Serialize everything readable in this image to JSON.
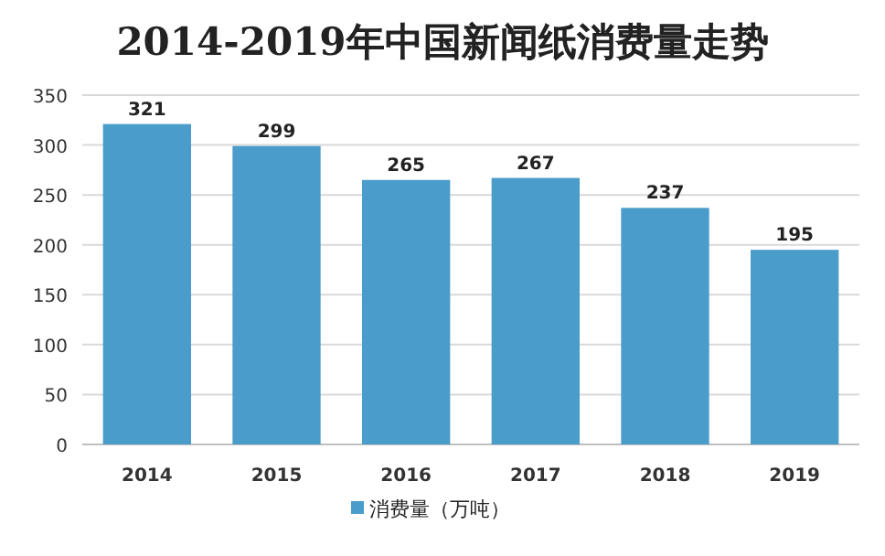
{
  "chart_data": {
    "type": "bar",
    "title": "2014-2019年中国新闻纸消费量走势",
    "categories": [
      "2014",
      "2015",
      "2016",
      "2017",
      "2018",
      "2019"
    ],
    "series": [
      {
        "name": "消费量（万吨）",
        "color": "#4a9ccb",
        "values": [
          321,
          299,
          265,
          267,
          237,
          195
        ]
      }
    ],
    "ylim": [
      0,
      350
    ],
    "yticks": [
      0,
      50,
      100,
      150,
      200,
      250,
      300,
      350
    ],
    "grid": "y",
    "data_labels": true,
    "legend": "bottom"
  }
}
